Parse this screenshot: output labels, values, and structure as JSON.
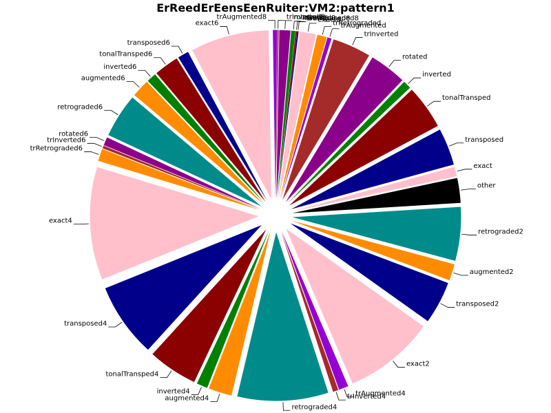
{
  "chart_data": {
    "type": "pie",
    "title": "ErReedErEensEenRuiter:VM2:pattern1",
    "exploded": true,
    "slices": [
      {
        "label": "other",
        "value": 0.9,
        "color": "#000000"
      },
      {
        "label": "exact",
        "value": 0.35,
        "color": "#ffc0cb"
      },
      {
        "label": "transposed",
        "value": 1.35,
        "color": "#00008b"
      },
      {
        "label": "tonalTransped",
        "value": 1.6,
        "color": "#8b0000"
      },
      {
        "label": "inverted",
        "value": 0.3,
        "color": "#008000"
      },
      {
        "label": "rotated",
        "value": 1.35,
        "color": "#8b008b"
      },
      {
        "label": "trInverted",
        "value": 1.4,
        "color": "#a52a2a"
      },
      {
        "label": "trAugmented",
        "value": 0.15,
        "color": "#9400d3"
      },
      {
        "label": "trRetrograded",
        "value": 0.35,
        "color": "#ff8c00"
      },
      {
        "label": "exact8",
        "value": 0.6,
        "color": "#ffc0cb"
      },
      {
        "label": "transposed8",
        "value": 0.05,
        "color": "#00008b"
      },
      {
        "label": "tonalTransped8",
        "value": 0.05,
        "color": "#8b0000"
      },
      {
        "label": "inverted8",
        "value": 0.15,
        "color": "#008000"
      },
      {
        "label": "rotated8",
        "value": 0.4,
        "color": "#8b008b"
      },
      {
        "label": "trInverted8",
        "value": 0.05,
        "color": "#a52a2a"
      },
      {
        "label": "trAugmented8",
        "value": 0.15,
        "color": "#9400d3"
      },
      {
        "label": "exact6",
        "value": 2.85,
        "color": "#ffc0cb"
      },
      {
        "label": "transposed6",
        "value": 0.4,
        "color": "#00008b"
      },
      {
        "label": "tonalTransped6",
        "value": 0.9,
        "color": "#8b0000"
      },
      {
        "label": "inverted6",
        "value": 0.35,
        "color": "#008000"
      },
      {
        "label": "augmented6",
        "value": 0.65,
        "color": "#ff8c00"
      },
      {
        "label": "retrograded6",
        "value": 1.6,
        "color": "#008b8b"
      },
      {
        "label": "rotated6",
        "value": 0.3,
        "color": "#8b008b"
      },
      {
        "label": "trInverted6",
        "value": 0.1,
        "color": "#a52a2a"
      },
      {
        "label": "trRetrograded6",
        "value": 0.45,
        "color": "#ff8c00"
      },
      {
        "label": "exact4",
        "value": 4.1,
        "color": "#ffc0cb"
      },
      {
        "label": "transposed4",
        "value": 2.7,
        "color": "#00008b"
      },
      {
        "label": "tonalTransped4",
        "value": 1.8,
        "color": "#8b0000"
      },
      {
        "label": "inverted4",
        "value": 0.4,
        "color": "#008000"
      },
      {
        "label": "augmented4",
        "value": 0.85,
        "color": "#ff8c00"
      },
      {
        "label": "retrograded4",
        "value": 3.3,
        "color": "#008b8b"
      },
      {
        "label": "trInverted4",
        "value": 0.2,
        "color": "#a52a2a"
      },
      {
        "label": "trAugmented4",
        "value": 0.35,
        "color": "#9400d3"
      },
      {
        "label": "exact2",
        "value": 3.3,
        "color": "#ffc0cb"
      },
      {
        "label": "transposed2",
        "value": 1.55,
        "color": "#00008b"
      },
      {
        "label": "augmented2",
        "value": 0.6,
        "color": "#ff8c00"
      },
      {
        "label": "retrograded2",
        "value": 1.95,
        "color": "#008b8b"
      }
    ]
  }
}
